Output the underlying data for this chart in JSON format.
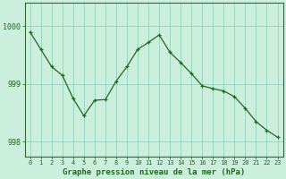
{
  "x": [
    0,
    1,
    2,
    3,
    4,
    5,
    6,
    7,
    8,
    9,
    10,
    11,
    12,
    13,
    14,
    15,
    16,
    17,
    18,
    19,
    20,
    21,
    22,
    23
  ],
  "y": [
    999.9,
    999.6,
    999.3,
    999.15,
    998.75,
    998.45,
    998.72,
    998.73,
    999.05,
    999.3,
    999.6,
    999.72,
    999.85,
    999.55,
    999.37,
    999.18,
    998.97,
    998.92,
    998.88,
    998.78,
    998.58,
    998.35,
    998.2,
    998.08
  ],
  "line_color": "#1a6b1a",
  "marker": "+",
  "background_color": "#cceedd",
  "grid_color": "#88ccbb",
  "axis_color": "#336633",
  "xlabel": "Graphe pression niveau de la mer (hPa)",
  "xlabel_color": "#1a6b1a",
  "tick_color": "#1a6b1a",
  "ylim": [
    997.75,
    1000.4
  ],
  "yticks": [
    998,
    999,
    1000
  ],
  "ytick_labels": [
    "998",
    "999",
    "1000"
  ],
  "xlim": [
    -0.5,
    23.5
  ],
  "figsize": [
    3.2,
    2.0
  ],
  "dpi": 100
}
